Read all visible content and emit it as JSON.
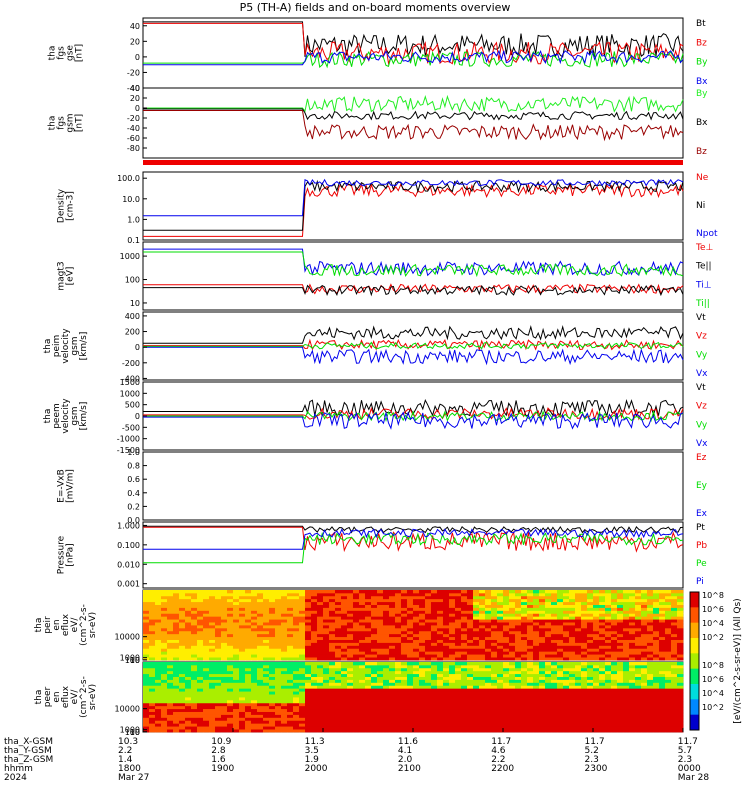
{
  "title": "P5 (TH-A) fields and on-board moments overview",
  "colors": {
    "black": "#000000",
    "red": "#ee0000",
    "green": "#00dd00",
    "blue": "#0000ee",
    "darkred": "#990000",
    "brightgreen": "#22ee22"
  },
  "chart_data": [
    {
      "type": "line",
      "panel": "fgs-gse",
      "ylabel": [
        "tha",
        "fgs",
        "gse",
        "[nT]"
      ],
      "ylim": [
        -40,
        50
      ],
      "yticks": [
        -40,
        -20,
        0,
        20,
        40
      ],
      "ytick_labels": [
        "-40",
        "-20",
        "0",
        "20",
        "40"
      ],
      "series": [
        {
          "name": "Bt",
          "color": "#000000",
          "before": 45,
          "after": 15,
          "noise_after": 15
        },
        {
          "name": "Bz",
          "color": "#ee0000",
          "before": 43,
          "after": 5,
          "noise_after": 14
        },
        {
          "name": "By",
          "color": "#00dd00",
          "before": -8,
          "after": -3,
          "noise_after": 10
        },
        {
          "name": "Bx",
          "color": "#0000ee",
          "before": -10,
          "after": 0,
          "noise_after": 8
        }
      ]
    },
    {
      "type": "line",
      "panel": "fgs-gsm",
      "ylabel": [
        "tha",
        "fgs",
        "gsm",
        "[nT]"
      ],
      "ylim": [
        -100,
        40
      ],
      "yticks": [
        -80,
        -60,
        -40,
        -20,
        0,
        20,
        40
      ],
      "ytick_labels": [
        "-80",
        "-60",
        "-40",
        "-20",
        "0",
        "20",
        "40"
      ],
      "series": [
        {
          "name": "By",
          "color": "#22ee22",
          "before": 0,
          "after": 8,
          "noise_after": 15
        },
        {
          "name": "Bx",
          "color": "#000000",
          "before": -2,
          "after": -15,
          "noise_after": 8
        },
        {
          "name": "Bz",
          "color": "#990000",
          "before": -5,
          "after": -48,
          "noise_after": 15
        }
      ]
    },
    {
      "type": "line",
      "panel": "density",
      "log": true,
      "ylabel": [
        "Density",
        "[cm-3]"
      ],
      "ylim": [
        0.1,
        200
      ],
      "yticks": [
        0.1,
        1,
        10,
        100
      ],
      "ytick_labels": [
        "0.1",
        "1.0",
        "10.0",
        "100.0"
      ],
      "series": [
        {
          "name": "Ne",
          "color": "#ee0000",
          "before": 0.15,
          "after": 25,
          "noise_after": 0.3
        },
        {
          "name": "Ni",
          "color": "#000000",
          "before": 0.3,
          "after": 40,
          "noise_after": 0.25
        },
        {
          "name": "Npot",
          "color": "#0000ee",
          "before": 1.5,
          "after": 60,
          "noise_after": 0.15
        }
      ]
    },
    {
      "type": "line",
      "panel": "temperature",
      "log": true,
      "ylabel": [
        "magt3",
        "[eV]"
      ],
      "ylim": [
        5,
        4000
      ],
      "yticks": [
        10,
        100,
        1000
      ],
      "ytick_labels": [
        "10",
        "100",
        "1000"
      ],
      "series": [
        {
          "name": "Te⊥",
          "color": "#ee0000",
          "before": 60,
          "after": 40,
          "noise_after": 0.2
        },
        {
          "name": "Te||",
          "color": "#000000",
          "before": 45,
          "after": 35,
          "noise_after": 0.2
        },
        {
          "name": "Ti⊥",
          "color": "#0000ee",
          "before": 2000,
          "after": 300,
          "noise_after": 0.3
        },
        {
          "name": "Ti||",
          "color": "#00dd00",
          "before": 1500,
          "after": 250,
          "noise_after": 0.25
        }
      ]
    },
    {
      "type": "line",
      "panel": "peim-velocity",
      "ylabel": [
        "tha",
        "peim",
        "velocity",
        "gsm",
        "[km/s]"
      ],
      "ylim": [
        -420,
        450
      ],
      "yticks": [
        -400,
        -200,
        0,
        200,
        400
      ],
      "ytick_labels": [
        "-400",
        "-200",
        "0",
        "200",
        "400"
      ],
      "series": [
        {
          "name": "Vt",
          "color": "#000000",
          "before": 50,
          "after": 180,
          "noise_after": 80
        },
        {
          "name": "Vz",
          "color": "#ee0000",
          "before": 20,
          "after": 30,
          "noise_after": 60
        },
        {
          "name": "Vy",
          "color": "#00dd00",
          "before": 10,
          "after": 20,
          "noise_after": 40
        },
        {
          "name": "Vx",
          "color": "#0000ee",
          "before": 0,
          "after": -120,
          "noise_after": 90
        }
      ]
    },
    {
      "type": "line",
      "panel": "peem-velocity",
      "ylabel": [
        "tha",
        "peem",
        "velocity",
        "gsm",
        "[km/s]"
      ],
      "ylim": [
        -1500,
        1500
      ],
      "yticks": [
        -1500,
        -1000,
        -500,
        0,
        500,
        1000,
        1500
      ],
      "ytick_labels": [
        "-1500",
        "-1000",
        "-500",
        "0",
        "500",
        "1000",
        "1500"
      ],
      "series": [
        {
          "name": "Vt",
          "color": "#000000",
          "before": 200,
          "after": 350,
          "noise_after": 350
        },
        {
          "name": "Vz",
          "color": "#ee0000",
          "before": 50,
          "after": 100,
          "noise_after": 250
        },
        {
          "name": "Vy",
          "color": "#00dd00",
          "before": 0,
          "after": 0,
          "noise_after": 200
        },
        {
          "name": "Vx",
          "color": "#0000ee",
          "before": -50,
          "after": -200,
          "noise_after": 350
        }
      ]
    },
    {
      "type": "line",
      "panel": "efield",
      "ylabel": [
        "E=-VxB",
        "[mV/m]"
      ],
      "ylim": [
        0,
        1
      ],
      "yticks": [
        0,
        0.2,
        0.4,
        0.6,
        0.8,
        1.0
      ],
      "ytick_labels": [
        "0.0",
        "0.2",
        "0.4",
        "0.6",
        "0.8",
        "1.0"
      ],
      "series": [
        {
          "name": "Ez",
          "color": "#ee0000"
        },
        {
          "name": "Ey",
          "color": "#00dd00"
        },
        {
          "name": "Ex",
          "color": "#0000ee"
        }
      ]
    },
    {
      "type": "line",
      "panel": "pressure",
      "log": true,
      "ylabel": [
        "Pressure",
        "[nPa]"
      ],
      "ylim": [
        0.0006,
        1.5
      ],
      "yticks": [
        0.001,
        0.01,
        0.1,
        1
      ],
      "ytick_labels": [
        "0.001",
        "0.010",
        "0.100",
        "1.000"
      ],
      "series": [
        {
          "name": "Pt",
          "color": "#000000",
          "before": 0.9,
          "after": 0.6,
          "noise_after": 0.15
        },
        {
          "name": "Pb",
          "color": "#ee0000",
          "before": 0.8,
          "after": 0.15,
          "noise_after": 0.5
        },
        {
          "name": "Pe",
          "color": "#00dd00",
          "before": 0.012,
          "after": 0.2,
          "noise_after": 0.3
        },
        {
          "name": "Pi",
          "color": "#0000ee",
          "before": 0.06,
          "after": 0.4,
          "noise_after": 0.2
        }
      ]
    },
    {
      "type": "heatmap",
      "panel": "peir-eflux",
      "ylabel": [
        "tha",
        "peir",
        "en",
        "eflux",
        "eV/",
        "(cm^2-s-",
        "sr-eV)"
      ],
      "ylim": [
        5,
        30000
      ],
      "yticks": [
        10,
        100,
        1000,
        10000
      ],
      "ytick_labels": [
        "10",
        "100",
        "1000",
        "10000"
      ]
    },
    {
      "type": "heatmap",
      "panel": "peer-eflux",
      "ylabel": [
        "tha",
        "peer",
        "en",
        "eflux",
        "eV/",
        "(cm^2-s-",
        "sr-eV)"
      ],
      "ylim": [
        5,
        30000
      ],
      "yticks": [
        10,
        100,
        1000,
        10000
      ],
      "ytick_labels": [
        "10",
        "100",
        "1000",
        "10000"
      ]
    }
  ],
  "colorbar": {
    "label": "[eV/(cm^2-s-sr-eV)] (All Qs)",
    "ticks_top": [
      "10^8",
      "10^6",
      "10^4",
      "10^2"
    ],
    "ticks_bottom": [
      "10^8",
      "10^6",
      "10^4",
      "10^2"
    ]
  },
  "xaxis": {
    "row_labels": [
      "tha_X-GSM",
      "tha_Y-GSM",
      "tha_Z-GSM",
      "hhmm",
      "2024"
    ],
    "ticks": [
      {
        "x": "10.3",
        "y": "2.2",
        "z": "1.4",
        "hhmm": "1800",
        "date": "Mar 27"
      },
      {
        "x": "10.9",
        "y": "2.8",
        "z": "1.6",
        "hhmm": "1900",
        "date": ""
      },
      {
        "x": "11.3",
        "y": "3.5",
        "z": "1.9",
        "hhmm": "2000",
        "date": ""
      },
      {
        "x": "11.6",
        "y": "4.1",
        "z": "2.0",
        "hhmm": "2100",
        "date": ""
      },
      {
        "x": "11.7",
        "y": "4.6",
        "z": "2.2",
        "hhmm": "2200",
        "date": ""
      },
      {
        "x": "11.7",
        "y": "5.2",
        "z": "2.3",
        "hhmm": "2300",
        "date": ""
      },
      {
        "x": "11.7",
        "y": "5.7",
        "z": "2.3",
        "hhmm": "0000",
        "date": "Mar 28"
      }
    ]
  }
}
